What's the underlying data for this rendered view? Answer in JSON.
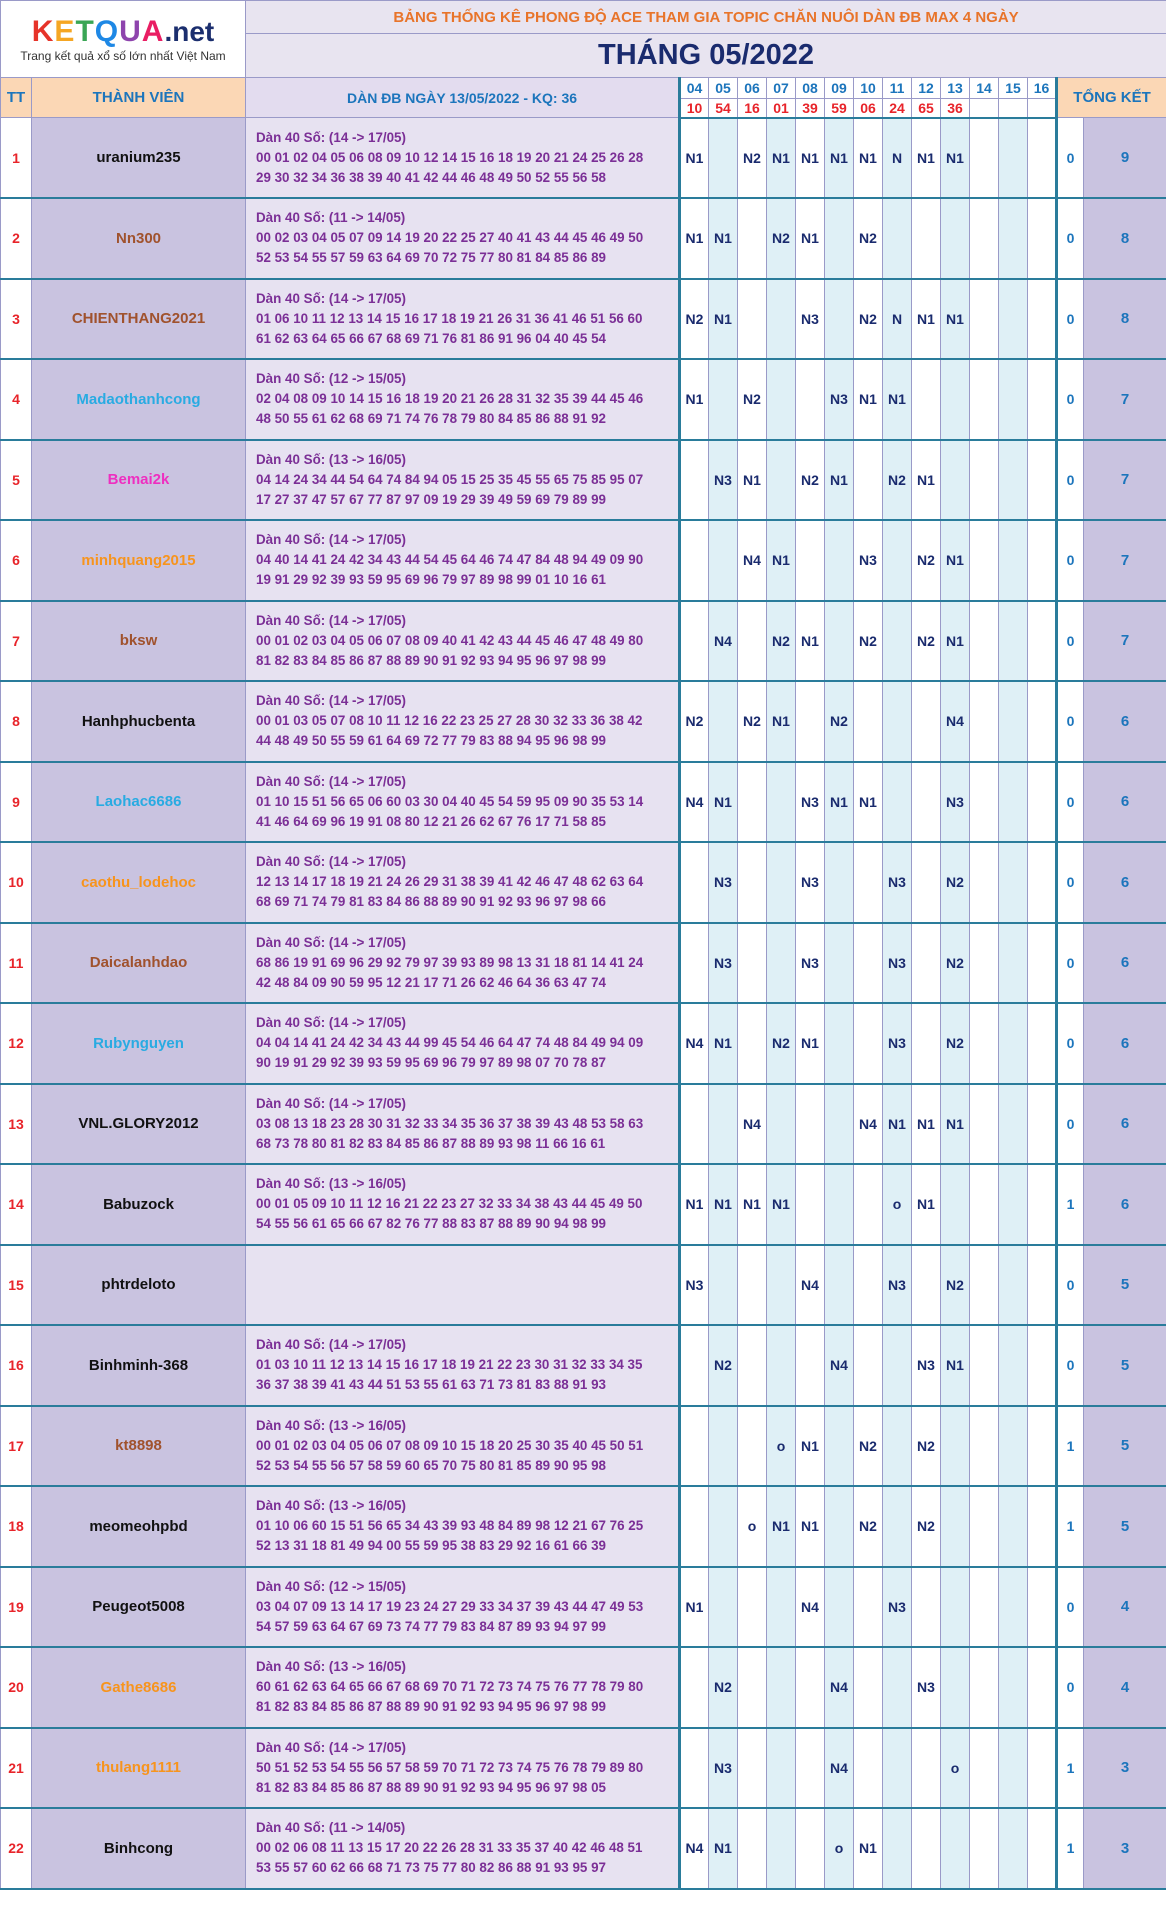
{
  "logo": {
    "brand_main": "KETQUA",
    "brand_suffix": ".net",
    "tagline": "Trang kết quả xổ số lớn nhất Việt Nam"
  },
  "header": {
    "title": "BẢNG THỐNG KÊ PHONG ĐỘ ACE THAM GIA TOPIC CHĂN NUÔI DÀN ĐB MAX 4 NGÀY",
    "month": "THÁNG 05/2022",
    "col_tt": "TT",
    "col_member": "THÀNH VIÊN",
    "col_dan": "DÀN ĐB NGÀY 13/05/2022 - KQ: 36",
    "col_total": "TỔNG KẾT"
  },
  "days": [
    "04",
    "05",
    "06",
    "07",
    "08",
    "09",
    "10",
    "11",
    "12",
    "13",
    "14",
    "15",
    "16"
  ],
  "results": [
    "10",
    "54",
    "16",
    "01",
    "39",
    "59",
    "06",
    "24",
    "65",
    "36",
    "",
    "",
    ""
  ],
  "colors": {
    "red": "#e8242a",
    "black": "#111111",
    "brown": "#a0522d",
    "cyan": "#29abe2",
    "magenta": "#ee2fc0",
    "orange": "#f7941d",
    "purple_text": "#7b2f96",
    "navy": "#1a2b6e"
  },
  "rows": [
    {
      "tt": "1",
      "name": "uranium235",
      "color": "black",
      "dan_title": "Dàn 40 Số: (14 -> 17/05)",
      "line1": "00 01 02 04 05 06 08 09 10 12 14 15 16 18 19 20 21 24 25 26 28",
      "line2": "29 30 32 34 36 38 39 40 41 42 44 46 48 49 50 52 55 56 58",
      "marks": [
        "N1",
        "",
        "N2",
        "N1",
        "N1",
        "N1",
        "N1",
        "N",
        "N1",
        "N1",
        "",
        "",
        ""
      ],
      "tong": "0",
      "tk": "9"
    },
    {
      "tt": "2",
      "name": "Nn300",
      "color": "brown",
      "dan_title": "Dàn 40 Số: (11 -> 14/05)",
      "line1": "00 02 03 04 05 07 09 14 19 20 22 25 27 40 41 43 44 45 46 49 50",
      "line2": "52 53 54 55 57 59 63 64 69 70 72 75 77 80 81 84 85 86 89",
      "marks": [
        "N1",
        "N1",
        "",
        "N2",
        "N1",
        "",
        "N2",
        "",
        "",
        "",
        "",
        "",
        ""
      ],
      "tong": "0",
      "tk": "8"
    },
    {
      "tt": "3",
      "name": "CHIENTHANG2021",
      "color": "brown",
      "dan_title": "Dàn 40 Số: (14 -> 17/05)",
      "line1": "01 06 10 11 12 13 14 15 16 17 18 19 21 26 31 36 41 46 51 56 60",
      "line2": "61 62 63 64 65 66 67 68 69 71 76 81 86 91 96 04 40 45 54",
      "marks": [
        "N2",
        "N1",
        "",
        "",
        "N3",
        "",
        "N2",
        "N",
        "N1",
        "N1",
        "",
        "",
        ""
      ],
      "tong": "0",
      "tk": "8"
    },
    {
      "tt": "4",
      "name": "Madaothanhcong",
      "color": "cyan",
      "dan_title": "Dàn 40 Số: (12 -> 15/05)",
      "line1": "02 04 08 09 10 14 15 16 18 19 20 21 26 28 31 32 35 39 44 45 46",
      "line2": "48 50 55 61 62 68 69 71 74 76 78 79 80 84 85 86 88 91 92",
      "marks": [
        "N1",
        "",
        "N2",
        "",
        "",
        "N3",
        "N1",
        "N1",
        "",
        "",
        "",
        "",
        ""
      ],
      "tong": "0",
      "tk": "7"
    },
    {
      "tt": "5",
      "name": "Bemai2k",
      "color": "magenta",
      "dan_title": "Dàn 40 Số: (13 -> 16/05)",
      "line1": "04 14 24 34 44 54 64 74 84 94 05 15 25 35 45 55 65 75 85 95 07",
      "line2": "17 27 37 47 57 67 77 87 97 09 19 29 39 49 59 69 79 89 99",
      "marks": [
        "",
        "N3",
        "N1",
        "",
        "N2",
        "N1",
        "",
        "N2",
        "N1",
        "",
        "",
        "",
        ""
      ],
      "tong": "0",
      "tk": "7"
    },
    {
      "tt": "6",
      "name": "minhquang2015",
      "color": "orange",
      "dan_title": "Dàn 40 Số: (14 -> 17/05)",
      "line1": "04 40 14 41 24 42 34 43 44 54 45 64 46 74 47 84 48 94 49 09 90",
      "line2": "19 91 29 92 39 93 59 95 69 96 79 97 89 98 99 01 10 16 61",
      "marks": [
        "",
        "",
        "N4",
        "N1",
        "",
        "",
        "N3",
        "",
        "N2",
        "N1",
        "",
        "",
        ""
      ],
      "tong": "0",
      "tk": "7"
    },
    {
      "tt": "7",
      "name": "bksw",
      "color": "brown",
      "dan_title": "Dàn 40 Số: (14 -> 17/05)",
      "line1": "00 01 02 03 04 05 06 07 08 09 40 41 42 43 44 45 46 47 48 49 80",
      "line2": "81 82 83 84 85 86 87 88 89 90 91 92 93 94 95 96 97 98 99",
      "marks": [
        "",
        "N4",
        "",
        "N2",
        "N1",
        "",
        "N2",
        "",
        "N2",
        "N1",
        "",
        "",
        ""
      ],
      "tong": "0",
      "tk": "7"
    },
    {
      "tt": "8",
      "name": "Hanhphucbenta",
      "color": "black",
      "dan_title": "Dàn 40 Số: (14 -> 17/05)",
      "line1": "00 01 03 05 07 08 10 11 12 16 22 23 25 27 28 30 32 33 36 38 42",
      "line2": "44 48 49 50 55 59 61 64 69 72 77 79 83 88 94 95 96 98 99",
      "marks": [
        "N2",
        "",
        "N2",
        "N1",
        "",
        "N2",
        "",
        "",
        "",
        "N4",
        "",
        "",
        ""
      ],
      "tong": "0",
      "tk": "6"
    },
    {
      "tt": "9",
      "name": "Laohac6686",
      "color": "cyan",
      "dan_title": "Dàn 40 Số: (14 -> 17/05)",
      "line1": "01 10 15 51 56 65 06 60 03 30 04 40 45 54 59 95 09 90 35 53 14",
      "line2": "41 46 64 69 96 19 91 08 80 12 21 26 62 67 76 17 71 58 85",
      "marks": [
        "N4",
        "N1",
        "",
        "",
        "N3",
        "N1",
        "N1",
        "",
        "",
        "N3",
        "",
        "",
        ""
      ],
      "tong": "0",
      "tk": "6"
    },
    {
      "tt": "10",
      "name": "caothu_lodehoc",
      "color": "orange",
      "dan_title": "Dàn 40 Số: (14 -> 17/05)",
      "line1": "12 13 14 17 18 19 21 24 26 29 31 38 39 41 42 46 47 48 62 63 64",
      "line2": "68 69 71 74 79 81 83 84 86 88 89 90 91 92 93 96 97 98 66",
      "marks": [
        "",
        "N3",
        "",
        "",
        "N3",
        "",
        "",
        "N3",
        "",
        "N2",
        "",
        "",
        ""
      ],
      "tong": "0",
      "tk": "6"
    },
    {
      "tt": "11",
      "name": "Daicalanhdao",
      "color": "brown",
      "dan_title": "Dàn 40 Số: (14 -> 17/05)",
      "line1": "68 86 19 91 69 96 29 92 79 97 39 93 89 98 13 31 18 81 14 41 24",
      "line2": "42 48 84 09 90 59 95 12 21 17 71 26 62 46 64 36 63 47 74",
      "marks": [
        "",
        "N3",
        "",
        "",
        "N3",
        "",
        "",
        "N3",
        "",
        "N2",
        "",
        "",
        ""
      ],
      "tong": "0",
      "tk": "6"
    },
    {
      "tt": "12",
      "name": "Rubynguyen",
      "color": "cyan",
      "dan_title": "Dàn 40 Số: (14 -> 17/05)",
      "line1": "04 04 14 41 24 42 34 43 44 99 45 54 46 64 47 74 48 84 49 94 09",
      "line2": "90 19 91 29 92 39 93 59 95 69 96 79 97 89 98 07 70 78 87",
      "marks": [
        "N4",
        "N1",
        "",
        "N2",
        "N1",
        "",
        "",
        "N3",
        "",
        "N2",
        "",
        "",
        ""
      ],
      "tong": "0",
      "tk": "6"
    },
    {
      "tt": "13",
      "name": "VNL.GLORY2012",
      "color": "black",
      "dan_title": "Dàn 40 Số: (14 -> 17/05)",
      "line1": "03 08 13 18 23 28 30 31 32 33 34 35 36 37 38 39 43 48 53 58 63",
      "line2": "68 73 78 80 81 82 83 84 85 86 87 88 89 93 98 11 66 16 61",
      "marks": [
        "",
        "",
        "N4",
        "",
        "",
        "",
        "N4",
        "N1",
        "N1",
        "N1",
        "",
        "",
        ""
      ],
      "tong": "0",
      "tk": "6"
    },
    {
      "tt": "14",
      "name": "Babuzock",
      "color": "black",
      "dan_title": "Dàn 40 Số: (13 -> 16/05)",
      "line1": "00 01 05 09 10 11 12 16 21 22 23 27 32 33 34 38 43 44 45 49 50",
      "line2": "54 55 56 61 65 66 67 82 76 77 88 83 87 88 89 90 94 98 99",
      "marks": [
        "N1",
        "N1",
        "N1",
        "N1",
        "",
        "",
        "",
        "o",
        "N1",
        "",
        "",
        "",
        ""
      ],
      "tong": "1",
      "tk": "6"
    },
    {
      "tt": "15",
      "name": "phtrdeloto",
      "color": "black",
      "dan_title": "",
      "line1": "",
      "line2": "",
      "marks": [
        "N3",
        "",
        "",
        "",
        "N4",
        "",
        "",
        "N3",
        "",
        "N2",
        "",
        "",
        ""
      ],
      "tong": "0",
      "tk": "5"
    },
    {
      "tt": "16",
      "name": "Binhminh-368",
      "color": "black",
      "dan_title": "Dàn 40 Số: (14 -> 17/05)",
      "line1": "01 03 10 11 12 13 14 15 16 17 18 19 21 22 23 30 31 32 33 34 35",
      "line2": "36 37 38 39 41 43 44 51 53 55 61 63 71 73 81 83 88 91 93",
      "marks": [
        "",
        "N2",
        "",
        "",
        "",
        "N4",
        "",
        "",
        "N3",
        "N1",
        "",
        "",
        ""
      ],
      "tong": "0",
      "tk": "5"
    },
    {
      "tt": "17",
      "name": "kt8898",
      "color": "brown",
      "dan_title": "Dàn 40 Số: (13 -> 16/05)",
      "line1": "00 01 02 03 04 05 06 07 08 09 10 15 18 20 25 30 35 40 45 50 51",
      "line2": "52 53 54 55 56 57 58 59 60 65 70 75 80 81 85 89 90 95 98",
      "marks": [
        "",
        "",
        "",
        "o",
        "N1",
        "",
        "N2",
        "",
        "N2",
        "",
        "",
        "",
        ""
      ],
      "tong": "1",
      "tk": "5"
    },
    {
      "tt": "18",
      "name": "meomeohpbd",
      "color": "black",
      "dan_title": "Dàn 40 Số: (13 -> 16/05)",
      "line1": "01 10 06 60 15 51 56 65 34 43 39 93 48 84 89 98 12 21 67 76 25",
      "line2": "52 13 31 18 81 49 94 00 55 59 95 38 83 29 92 16 61 66 39",
      "marks": [
        "",
        "",
        "o",
        "N1",
        "N1",
        "",
        "N2",
        "",
        "N2",
        "",
        "",
        "",
        ""
      ],
      "tong": "1",
      "tk": "5"
    },
    {
      "tt": "19",
      "name": "Peugeot5008",
      "color": "black",
      "dan_title": "Dàn 40 Số: (12 -> 15/05)",
      "line1": "03 04 07 09 13 14 17 19 23 24 27 29 33 34 37 39 43 44 47 49 53",
      "line2": "54 57 59 63 64 67 69 73 74 77 79 83 84 87 89 93 94 97 99",
      "marks": [
        "N1",
        "",
        "",
        "",
        "N4",
        "",
        "",
        "N3",
        "",
        "",
        "",
        "",
        ""
      ],
      "tong": "0",
      "tk": "4"
    },
    {
      "tt": "20",
      "name": "Gathe8686",
      "color": "orange",
      "dan_title": "Dàn 40 Số: (13 -> 16/05)",
      "line1": "60 61 62 63 64 65 66 67 68 69 70 71 72 73 74 75 76 77 78 79 80",
      "line2": "81 82 83 84 85 86 87 88 89 90 91 92 93 94 95 96 97 98 99",
      "marks": [
        "",
        "N2",
        "",
        "",
        "",
        "N4",
        "",
        "",
        "N3",
        "",
        "",
        "",
        ""
      ],
      "tong": "0",
      "tk": "4"
    },
    {
      "tt": "21",
      "name": "thulang1111",
      "color": "orange",
      "dan_title": "Dàn 40 Số: (14 -> 17/05)",
      "line1": "50 51 52 53 54 55 56 57 58 59 70 71 72 73 74 75 76 78 79 89 80",
      "line2": "81 82 83 84 85 86 87 88 89 90 91 92 93 94 95 96 97 98 05",
      "marks": [
        "",
        "N3",
        "",
        "",
        "",
        "N4",
        "",
        "",
        "",
        "o",
        "",
        "",
        ""
      ],
      "tong": "1",
      "tk": "3"
    },
    {
      "tt": "22",
      "name": "Binhcong",
      "color": "black",
      "dan_title": "Dàn 40 Số: (11 -> 14/05)",
      "line1": "00 02 06 08 11 13 15 17 20 22 26 28 31 33 35 37 40 42 46 48 51",
      "line2": "53 55 57 60 62 66 68 71 73 75 77 80 82 86 88 91 93 95 97",
      "marks": [
        "N4",
        "N1",
        "",
        "",
        "",
        "o",
        "N1",
        "",
        "",
        "",
        "",
        "",
        ""
      ],
      "tong": "1",
      "tk": "3"
    }
  ]
}
